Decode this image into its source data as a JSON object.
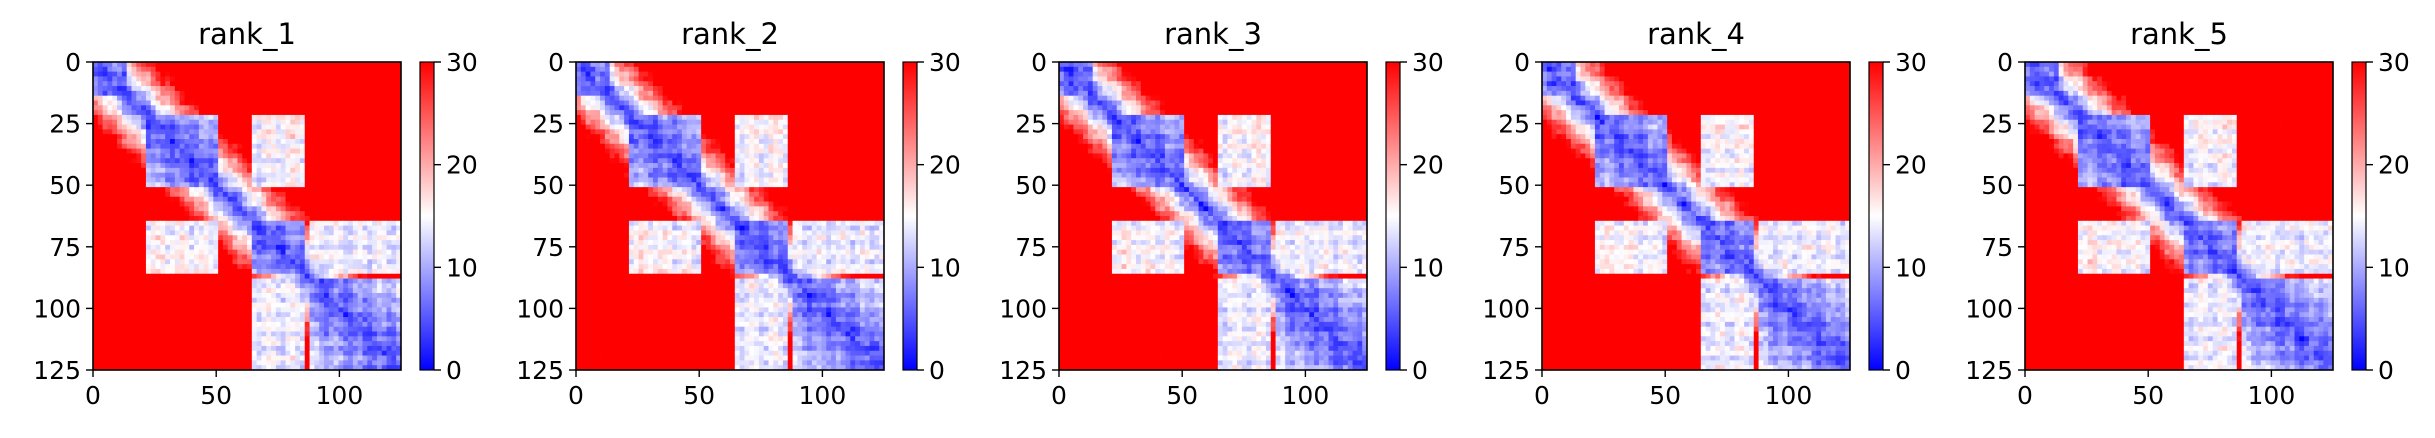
{
  "chart_data": [
    {
      "type": "heatmap",
      "title": "rank_1",
      "x_ticks": [
        "0",
        "50",
        "100"
      ],
      "y_ticks": [
        "0",
        "25",
        "50",
        "75",
        "100",
        "125"
      ],
      "xlim": [
        0,
        125
      ],
      "ylim": [
        125,
        0
      ],
      "colorbar": {
        "ticks": [
          "0",
          "10",
          "20",
          "30"
        ],
        "range": [
          0,
          30
        ],
        "colormap": "bwr"
      },
      "domains": [
        [
          0,
          14
        ],
        [
          22,
          50
        ],
        [
          65,
          85
        ],
        [
          88,
          125
        ]
      ],
      "grid": false
    },
    {
      "type": "heatmap",
      "title": "rank_2",
      "x_ticks": [
        "0",
        "50",
        "100"
      ],
      "y_ticks": [
        "0",
        "25",
        "50",
        "75",
        "100",
        "125"
      ],
      "xlim": [
        0,
        125
      ],
      "ylim": [
        125,
        0
      ],
      "colorbar": {
        "ticks": [
          "0",
          "10",
          "20",
          "30"
        ],
        "range": [
          0,
          30
        ],
        "colormap": "bwr"
      },
      "domains": [
        [
          0,
          14
        ],
        [
          22,
          50
        ],
        [
          65,
          85
        ],
        [
          88,
          125
        ]
      ],
      "grid": false
    },
    {
      "type": "heatmap",
      "title": "rank_3",
      "x_ticks": [
        "0",
        "50",
        "100"
      ],
      "y_ticks": [
        "0",
        "25",
        "50",
        "75",
        "100",
        "125"
      ],
      "xlim": [
        0,
        125
      ],
      "ylim": [
        125,
        0
      ],
      "colorbar": {
        "ticks": [
          "0",
          "10",
          "20",
          "30"
        ],
        "range": [
          0,
          30
        ],
        "colormap": "bwr"
      },
      "domains": [
        [
          0,
          14
        ],
        [
          22,
          50
        ],
        [
          65,
          85
        ],
        [
          88,
          125
        ]
      ],
      "grid": false
    },
    {
      "type": "heatmap",
      "title": "rank_4",
      "x_ticks": [
        "0",
        "50",
        "100"
      ],
      "y_ticks": [
        "0",
        "25",
        "50",
        "75",
        "100",
        "125"
      ],
      "xlim": [
        0,
        125
      ],
      "ylim": [
        125,
        0
      ],
      "colorbar": {
        "ticks": [
          "0",
          "10",
          "20",
          "30"
        ],
        "range": [
          0,
          30
        ],
        "colormap": "bwr"
      },
      "domains": [
        [
          0,
          14
        ],
        [
          22,
          50
        ],
        [
          65,
          85
        ],
        [
          88,
          125
        ]
      ],
      "grid": false
    },
    {
      "type": "heatmap",
      "title": "rank_5",
      "x_ticks": [
        "0",
        "50",
        "100"
      ],
      "y_ticks": [
        "0",
        "25",
        "50",
        "75",
        "100",
        "125"
      ],
      "xlim": [
        0,
        125
      ],
      "ylim": [
        125,
        0
      ],
      "colorbar": {
        "ticks": [
          "0",
          "10",
          "20",
          "30"
        ],
        "range": [
          0,
          30
        ],
        "colormap": "bwr"
      },
      "domains": [
        [
          0,
          14
        ],
        [
          22,
          50
        ],
        [
          65,
          85
        ],
        [
          88,
          125
        ]
      ],
      "grid": false
    }
  ],
  "colors": {
    "low": "#0000ff",
    "mid": "#ffffff",
    "high": "#ff0000",
    "axis": "#000000"
  }
}
